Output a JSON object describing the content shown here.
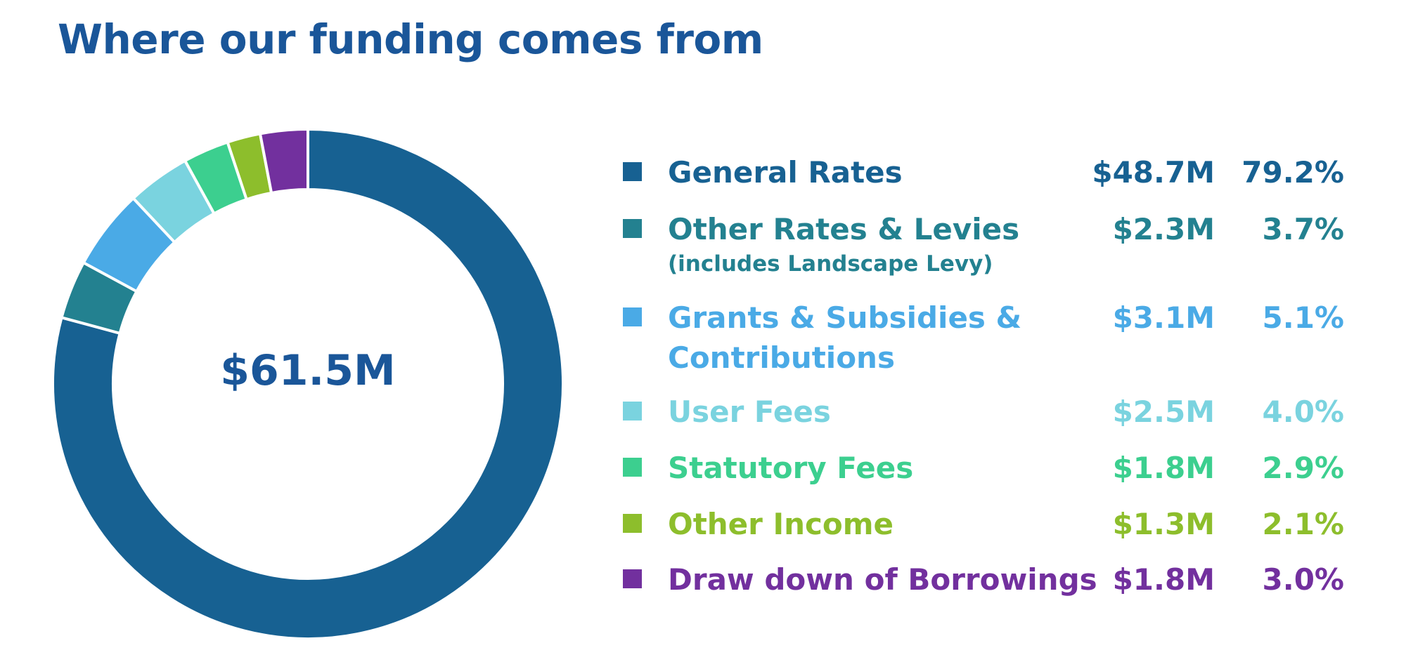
{
  "page": {
    "title": "Where our funding comes from"
  },
  "chart_data": {
    "type": "pie",
    "title": "Where our funding comes from",
    "total_label": "$61.5M",
    "categories": [
      "General Rates",
      "Other Rates & Levies (includes Landscape Levy)",
      "Grants & Subsidies & Contributions",
      "User Fees",
      "Statutory Fees",
      "Other Income",
      "Draw down of Borrowings"
    ],
    "values": [
      79.2,
      3.7,
      5.1,
      4.0,
      2.9,
      2.1,
      3.0
    ],
    "amounts": [
      "$48.7M",
      "$2.3M",
      "$3.1M",
      "$2.5M",
      "$1.8M",
      "$1.3M",
      "$1.8M"
    ],
    "legend_placement": "right"
  },
  "legend": [
    {
      "label": "General Rates",
      "sublabel": "",
      "amount": "$48.7M",
      "percent": "79.2%",
      "color": "#176192"
    },
    {
      "label": "Other Rates & Levies",
      "sublabel": "(includes Landscape Levy)",
      "amount": "$2.3M",
      "percent": "3.7%",
      "color": "#238190"
    },
    {
      "label": "Grants & Subsidies &",
      "label2": "Contributions",
      "sublabel": "",
      "amount": "$3.1M",
      "percent": "5.1%",
      "color": "#4aaae6"
    },
    {
      "label": "User Fees",
      "sublabel": "",
      "amount": "$2.5M",
      "percent": "4.0%",
      "color": "#7ad3df"
    },
    {
      "label": "Statutory Fees",
      "sublabel": "",
      "amount": "$1.8M",
      "percent": "2.9%",
      "color": "#3ccf8f"
    },
    {
      "label": "Other Income",
      "sublabel": "",
      "amount": "$1.3M",
      "percent": "2.1%",
      "color": "#8dbe2c"
    },
    {
      "label": "Draw down of Borrowings",
      "sublabel": "",
      "amount": "$1.8M",
      "percent": "3.0%",
      "color": "#72309e"
    }
  ],
  "colors": {
    "title": "#1a5699",
    "center_total": "#1a5699"
  }
}
